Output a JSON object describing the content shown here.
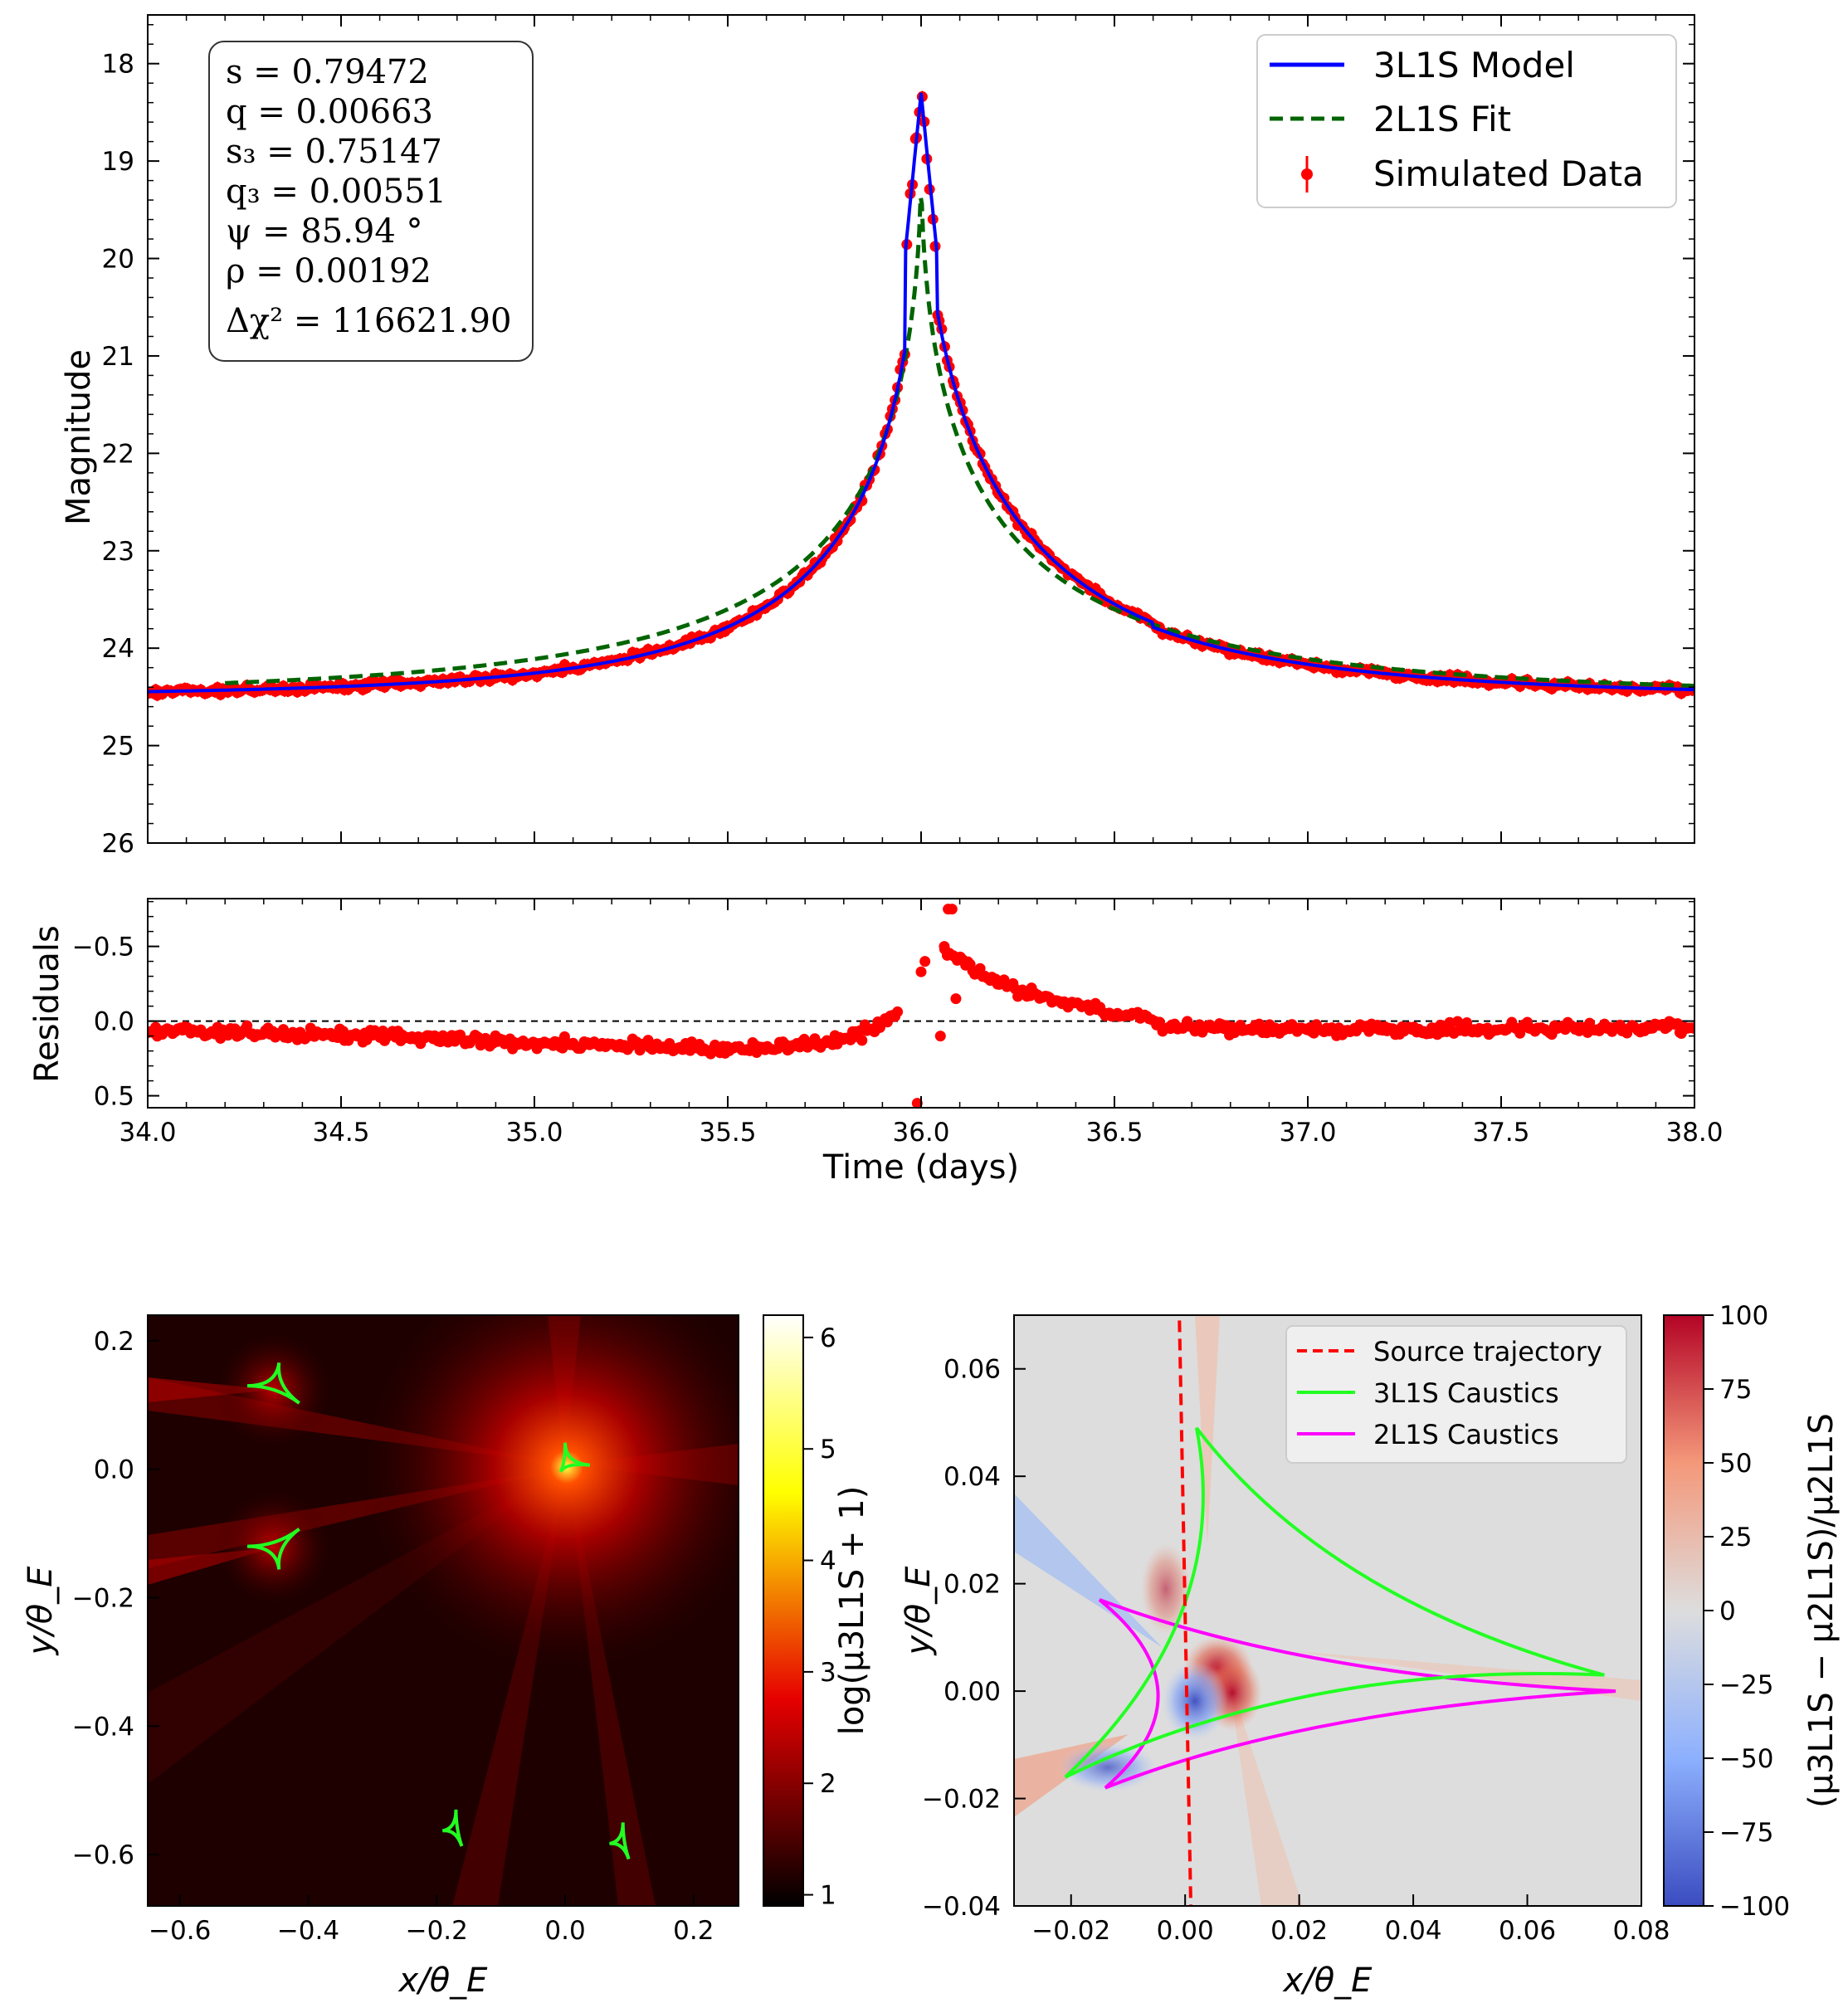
{
  "colors": {
    "model3": "#0000ff",
    "fit2": "#006400",
    "data": "#ff0000",
    "caustic3": "#22ff22",
    "caustic2": "#ff00ff",
    "trajectory": "#ff0000"
  },
  "chart_data": [
    {
      "type": "line",
      "id": "lightcurve",
      "ylabel": "Magnitude",
      "xlim": [
        34.0,
        38.0
      ],
      "ylim": [
        26,
        17.5
      ],
      "yticks": [
        18,
        19,
        20,
        21,
        22,
        23,
        24,
        25,
        26
      ],
      "legend_position": "top-right",
      "series": [
        {
          "name": "3L1S Model",
          "style": "solid"
        },
        {
          "name": "2L1S Fit",
          "style": "dashed"
        },
        {
          "name": "Simulated Data",
          "style": "errorbar-points"
        }
      ],
      "peak_time": 36.0,
      "peak_magnitude_model": 18.3,
      "peak_magnitude_fit": 19.0,
      "baseline_magnitude": 24.5,
      "annotation_lines": [
        "s = 0.79472",
        "q = 0.00663",
        "s₃ = 0.75147",
        "q₃ = 0.00551",
        "ψ = 85.94 °",
        "ρ = 0.00192",
        "Δχ² = 116621.90"
      ]
    },
    {
      "type": "scatter",
      "id": "residuals",
      "ylabel": "Residuals",
      "xlabel": "Time (days)",
      "xlim": [
        34.0,
        38.0
      ],
      "ylim": [
        0.58,
        -0.82
      ],
      "xticks": [
        "34.0",
        "34.5",
        "35.0",
        "35.5",
        "36.0",
        "36.5",
        "37.0",
        "37.5",
        "38.0"
      ],
      "yticks": [
        {
          "v": -0.5,
          "label": "−0.5"
        },
        {
          "v": 0.0,
          "label": "0.0"
        },
        {
          "v": 0.5,
          "label": "0.5"
        }
      ],
      "outliers": [
        [
          36.0,
          -0.33
        ],
        [
          36.01,
          -0.4
        ],
        [
          36.06,
          -0.5
        ],
        [
          36.07,
          -0.75
        ],
        [
          36.08,
          -0.75
        ],
        [
          36.05,
          0.1
        ],
        [
          35.99,
          0.55
        ],
        [
          36.09,
          -0.15
        ]
      ]
    },
    {
      "type": "heatmap",
      "id": "magnification-map",
      "xlabel": "x/θ_E",
      "ylabel": "y/θ_E",
      "xlim": [
        -0.65,
        0.27
      ],
      "ylim": [
        -0.68,
        0.24
      ],
      "xticks": [
        {
          "v": -0.6,
          "label": "−0.6"
        },
        {
          "v": -0.4,
          "label": "−0.4"
        },
        {
          "v": -0.2,
          "label": "−0.2"
        },
        {
          "v": 0.0,
          "label": "0.0"
        },
        {
          "v": 0.2,
          "label": "0.2"
        }
      ],
      "yticks": [
        {
          "v": 0.2,
          "label": "0.2"
        },
        {
          "v": 0.0,
          "label": "0.0"
        },
        {
          "v": -0.2,
          "label": "−0.2"
        },
        {
          "v": -0.4,
          "label": "−0.4"
        },
        {
          "v": -0.6,
          "label": "−0.6"
        }
      ],
      "colorbar_label": "log(μ3L1S + 1)",
      "colorbar_range": [
        0.9,
        6.2
      ],
      "colorbar_ticks": [
        "1",
        "2",
        "3",
        "4",
        "5",
        "6"
      ],
      "caustics": [
        {
          "center": [
            -0.45,
            0.13
          ],
          "size": 0.045
        },
        {
          "center": [
            -0.45,
            -0.12
          ],
          "size": 0.045
        },
        {
          "center": [
            -0.17,
            -0.56
          ],
          "size": 0.03
        },
        {
          "center": [
            0.09,
            -0.58
          ],
          "size": 0.03
        },
        {
          "center": [
            0.0,
            0.01
          ],
          "size": 0.035
        }
      ]
    },
    {
      "type": "heatmap",
      "id": "difference-map",
      "xlabel": "x/θ_E",
      "ylabel": "y/θ_E",
      "xlim": [
        -0.03,
        0.08
      ],
      "ylim": [
        -0.04,
        0.07
      ],
      "xticks": [
        {
          "v": -0.02,
          "label": "−0.02"
        },
        {
          "v": 0.0,
          "label": "0.00"
        },
        {
          "v": 0.02,
          "label": "0.02"
        },
        {
          "v": 0.04,
          "label": "0.04"
        },
        {
          "v": 0.06,
          "label": "0.06"
        },
        {
          "v": 0.08,
          "label": "0.08"
        }
      ],
      "yticks": [
        {
          "v": 0.06,
          "label": "0.06"
        },
        {
          "v": 0.04,
          "label": "0.04"
        },
        {
          "v": 0.02,
          "label": "0.02"
        },
        {
          "v": 0.0,
          "label": "0.00"
        },
        {
          "v": -0.02,
          "label": "−0.02"
        },
        {
          "v": -0.04,
          "label": "−0.04"
        }
      ],
      "colorbar_label": "(μ3L1S − μ2L1S)/μ2L1S",
      "colorbar_range": [
        -100,
        100
      ],
      "colorbar_ticks": [
        {
          "v": 100,
          "label": "100"
        },
        {
          "v": 75,
          "label": "75"
        },
        {
          "v": 50,
          "label": "50"
        },
        {
          "v": 25,
          "label": "25"
        },
        {
          "v": 0,
          "label": "0"
        },
        {
          "v": -25,
          "label": "−25"
        },
        {
          "v": -50,
          "label": "−50"
        },
        {
          "v": -75,
          "label": "−75"
        },
        {
          "v": -100,
          "label": "−100"
        }
      ],
      "legend_position": "top-right",
      "legend": [
        "Source trajectory",
        "3L1S Caustics",
        "2L1S Caustics"
      ],
      "trajectory": [
        [
          -0.001,
          0.069
        ],
        [
          0.001,
          -0.04
        ]
      ],
      "caustic_3l1s": [
        [
          0.002,
          0.049
        ],
        [
          0.0735,
          0.003
        ],
        [
          -0.021,
          -0.016
        ]
      ],
      "caustic_2l1s": [
        [
          -0.015,
          0.017
        ],
        [
          0.0755,
          0.0
        ],
        [
          -0.014,
          -0.018
        ]
      ]
    }
  ]
}
